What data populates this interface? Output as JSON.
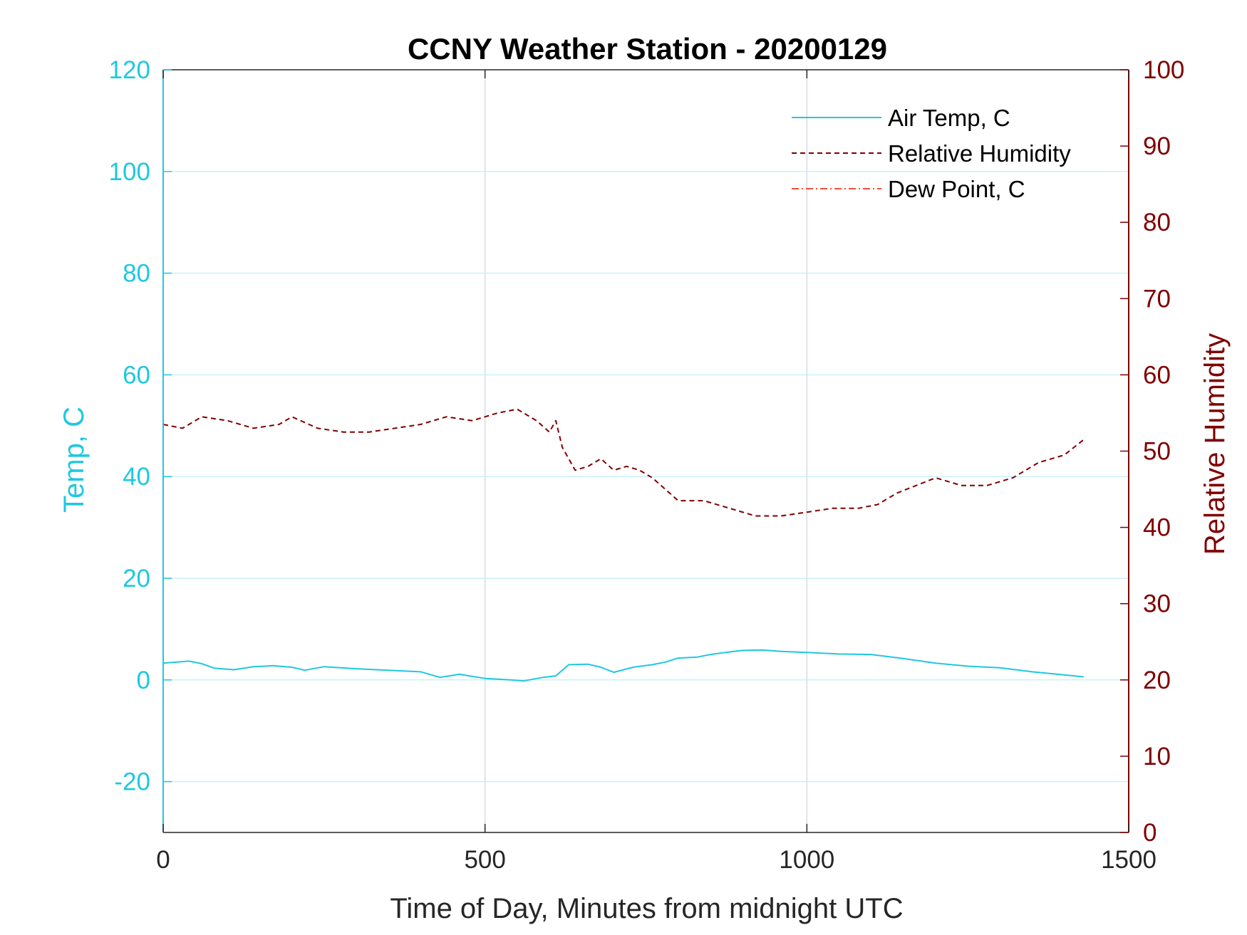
{
  "chart_data": {
    "type": "line",
    "title": "CCNY Weather Station - 20200129",
    "xlabel": "Time of Day, Minutes from midnight UTC",
    "ylabel_left": "Temp, C",
    "ylabel_right": "Relative Humidity",
    "xlim": [
      0,
      1500
    ],
    "ylim_left": [
      -30,
      120
    ],
    "ylim_right": [
      0,
      100
    ],
    "x_ticks": [
      "0",
      "500",
      "1000",
      "1500"
    ],
    "x_tick_values": [
      0,
      500,
      1000,
      1500
    ],
    "y_left_ticks": [
      "-20",
      "0",
      "20",
      "40",
      "60",
      "80",
      "100",
      "120"
    ],
    "y_left_tick_values": [
      -20,
      0,
      20,
      40,
      60,
      80,
      100,
      120
    ],
    "y_right_ticks": [
      "0",
      "10",
      "20",
      "30",
      "40",
      "50",
      "60",
      "70",
      "80",
      "90",
      "100"
    ],
    "y_right_tick_values": [
      0,
      10,
      20,
      30,
      40,
      50,
      60,
      70,
      80,
      90,
      100
    ],
    "grid": true,
    "legend_position": "top-right",
    "colors": {
      "left_axis": "#1ec8e0",
      "right_axis": "#800000",
      "air_temp": "#1ec8e0",
      "humidity": "#800000",
      "dew_point": "#f0503c",
      "grid_x": "#d5dbe3",
      "grid_y": "#c8f0f8",
      "box": "#262626"
    },
    "series": [
      {
        "name": "Air Temp, C",
        "axis": "left",
        "style": "solid",
        "x": [
          0,
          40,
          60,
          80,
          110,
          140,
          170,
          200,
          220,
          250,
          300,
          350,
          400,
          430,
          460,
          500,
          540,
          560,
          590,
          610,
          630,
          660,
          680,
          700,
          730,
          760,
          780,
          800,
          830,
          850,
          880,
          900,
          930,
          960,
          1000,
          1050,
          1100,
          1150,
          1200,
          1250,
          1300,
          1350,
          1400,
          1430
        ],
        "y": [
          3.3,
          3.7,
          3.2,
          2.3,
          2.0,
          2.6,
          2.8,
          2.5,
          1.9,
          2.6,
          2.2,
          1.9,
          1.6,
          0.5,
          1.1,
          0.3,
          0.0,
          -0.2,
          0.5,
          0.8,
          3.0,
          3.1,
          2.5,
          1.5,
          2.5,
          3.0,
          3.5,
          4.3,
          4.5,
          5.0,
          5.5,
          5.8,
          5.9,
          5.6,
          5.4,
          5.1,
          5.0,
          4.2,
          3.3,
          2.7,
          2.4,
          1.6,
          1.0,
          0.6
        ]
      },
      {
        "name": "Relative Humidity",
        "axis": "right",
        "style": "dashed",
        "x": [
          0,
          30,
          60,
          100,
          140,
          180,
          200,
          240,
          280,
          320,
          360,
          400,
          440,
          480,
          520,
          550,
          580,
          600,
          610,
          620,
          640,
          660,
          680,
          700,
          720,
          740,
          760,
          780,
          800,
          840,
          880,
          920,
          960,
          1000,
          1040,
          1080,
          1110,
          1140,
          1170,
          1200,
          1240,
          1280,
          1320,
          1360,
          1400,
          1430
        ],
        "y": [
          53.5,
          53.0,
          54.5,
          54.0,
          53.0,
          53.5,
          54.5,
          53.0,
          52.5,
          52.5,
          53.0,
          53.5,
          54.5,
          54.0,
          55.0,
          55.5,
          54.0,
          52.5,
          54.0,
          50.5,
          47.5,
          48.0,
          49.0,
          47.5,
          48.0,
          47.5,
          46.5,
          45.0,
          43.5,
          43.5,
          42.5,
          41.5,
          41.5,
          42.0,
          42.5,
          42.5,
          43.0,
          44.5,
          45.5,
          46.5,
          45.5,
          45.5,
          46.5,
          48.5,
          49.5,
          51.5
        ]
      },
      {
        "name": "Dew Point, C",
        "axis": "left",
        "style": "dash-dot",
        "x": [],
        "y": []
      }
    ]
  }
}
